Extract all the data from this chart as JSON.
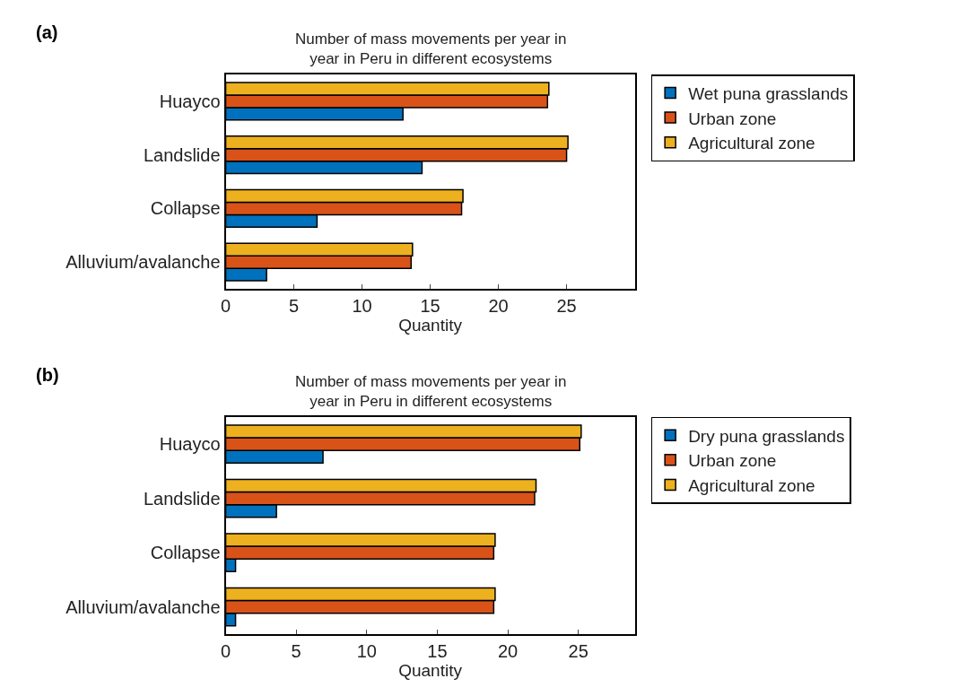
{
  "chart_data": [
    {
      "type": "bar",
      "orientation": "horizontal",
      "title": "Number of mass movements per year in year in Peru in different ecosystems",
      "xlabel": "Quantity",
      "annotations": [
        "(a)"
      ],
      "categories": [
        "Huayco",
        "Landslide",
        "Collapse",
        "Alluvium/avalanche"
      ],
      "series": [
        {
          "name": "Wet puna grasslands",
          "color": "#0072bd",
          "values": [
            13.0,
            14.4,
            6.7,
            3.0
          ]
        },
        {
          "name": "Urban zone",
          "color": "#d95319",
          "values": [
            23.6,
            25.0,
            17.3,
            13.6
          ]
        },
        {
          "name": "Agricultural zone",
          "color": "#edb120",
          "values": [
            23.7,
            25.1,
            17.4,
            13.7
          ]
        }
      ],
      "xlim": [
        0,
        30
      ],
      "xticks": [
        0,
        5,
        10,
        15,
        20,
        25
      ],
      "legend": "right"
    },
    {
      "type": "bar",
      "orientation": "horizontal",
      "title": "Number of mass movements per year in year in Peru in different ecosystems",
      "xlabel": "Quantity",
      "annotations": [
        "(b)"
      ],
      "categories": [
        "Huayco",
        "Landslide",
        "Collapse",
        "Alluvium/avalanche"
      ],
      "series": [
        {
          "name": "Dry puna grasslands",
          "color": "#0072bd",
          "values": [
            6.9,
            3.6,
            0.7,
            0.7
          ]
        },
        {
          "name": "Urban zone",
          "color": "#d95319",
          "values": [
            25.1,
            21.9,
            19.0,
            19.0
          ]
        },
        {
          "name": "Agricultural zone",
          "color": "#edb120",
          "values": [
            25.2,
            22.0,
            19.1,
            19.1
          ]
        }
      ],
      "xlim": [
        0,
        29
      ],
      "xticks": [
        0,
        5,
        10,
        15,
        20,
        25
      ],
      "legend": "right"
    }
  ]
}
